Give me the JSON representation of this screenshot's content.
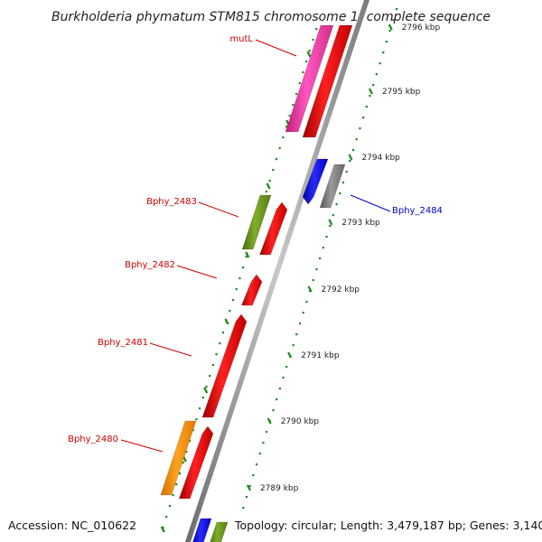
{
  "title": "Burkholderia phymatum STM815 chromosome 1, complete sequence",
  "footer": {
    "accession": "Accession: NC_010622",
    "topology": "Topology: circular; Length: 3,479,187 bp; Genes: 3,140"
  },
  "ticks": [
    {
      "label": "2789 kbp"
    },
    {
      "label": "2790 kbp"
    },
    {
      "label": "2791 kbp"
    },
    {
      "label": "2792 kbp"
    },
    {
      "label": "2793 kbp"
    },
    {
      "label": "2794 kbp"
    },
    {
      "label": "2795 kbp"
    },
    {
      "label": "2796 kbp"
    }
  ],
  "genes": [
    {
      "label": "mutL",
      "color": "#cc0000"
    },
    {
      "label": "Bphy_2483",
      "color": "#cc0000"
    },
    {
      "label": "Bphy_2482",
      "color": "#cc0000"
    },
    {
      "label": "Bphy_2481",
      "color": "#cc0000"
    },
    {
      "label": "Bphy_2480",
      "color": "#cc0000"
    },
    {
      "label": "Bphy_2484",
      "color": "#0000cc"
    }
  ],
  "colors": {
    "red": "#ff1010",
    "pink": "#ff3fb4",
    "blue": "#1010ff",
    "gray": "#808080",
    "olive": "#6b9a1e",
    "orange": "#ff9400",
    "tick": "#1e8a1e"
  }
}
